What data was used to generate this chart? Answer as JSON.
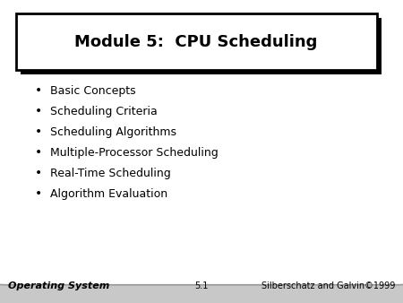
{
  "title": "Module 5:  CPU Scheduling",
  "bullet_items": [
    "Basic Concepts",
    "Scheduling Criteria",
    "Scheduling Algorithms",
    "Multiple-Processor Scheduling",
    "Real-Time Scheduling",
    "Algorithm Evaluation"
  ],
  "footer_left": "Operating System",
  "footer_center": "5.1",
  "footer_right": "Silberschatz and Galvin©1999",
  "outer_bg_color": "#c8c8c8",
  "slide_bg": "#ffffff",
  "title_bg": "#ffffff",
  "title_color": "#000000",
  "bullet_color": "#000000",
  "footer_color": "#000000",
  "title_fontsize": 13,
  "bullet_fontsize": 9,
  "footer_fontsize": 7
}
